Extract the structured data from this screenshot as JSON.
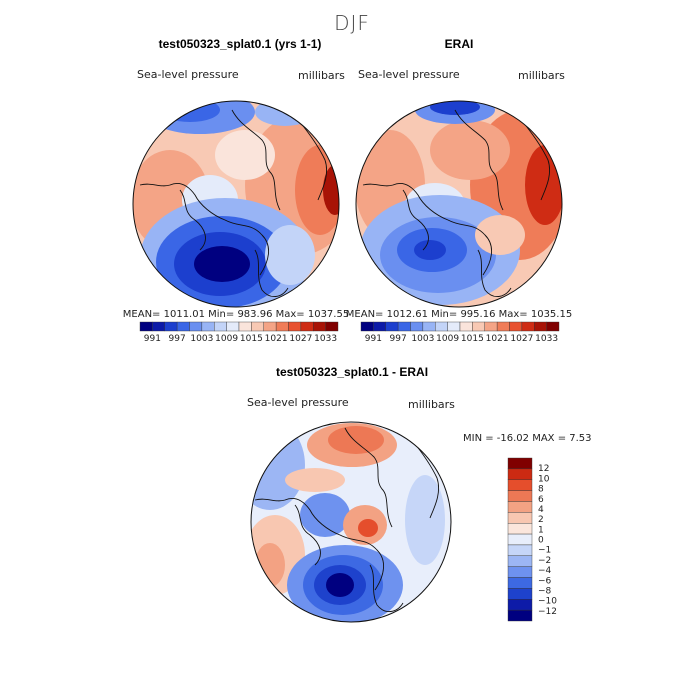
{
  "season": "DJF",
  "colors": {
    "neg": [
      "#000080",
      "#0c1aa8",
      "#1c3fce",
      "#3a66e6",
      "#6a8ff0",
      "#98b4f5",
      "#c3d4f8",
      "#e4ebfa"
    ],
    "pos": [
      "#fae4db",
      "#f8c9b4",
      "#f4a486",
      "#ef7c58",
      "#e85230",
      "#cf2c14",
      "#a81306",
      "#800000"
    ],
    "diff_scale": [
      "#000080",
      "#0d1ba8",
      "#1e42cc",
      "#3d69e3",
      "#6e92ef",
      "#9cb6f4",
      "#c6d6f8",
      "#e8eefb",
      "#fbe6dc",
      "#f8c7b1",
      "#f3a283",
      "#ed7855",
      "#e54e2c",
      "#cc2a12",
      "#800000"
    ]
  },
  "chart_data": [
    {
      "type": "heatmap",
      "projection": "polar-stereographic",
      "title": "test050323_splat0.1 (yrs 1-1)",
      "variable": "Sea-level pressure",
      "units": "millibars",
      "stats_text": "MEAN= 1011.01   Min= 983.96   Max= 1037.55",
      "stats": {
        "mean": 1011.01,
        "min": 983.96,
        "max": 1037.55
      },
      "colorbar_labels": [
        "991",
        "997",
        "1003",
        "1009",
        "1015",
        "1021",
        "1027",
        "1033"
      ],
      "levels": [
        988,
        991,
        994,
        997,
        1000,
        1003,
        1006,
        1009,
        1012,
        1015,
        1018,
        1021,
        1024,
        1027,
        1030,
        1033,
        1036
      ]
    },
    {
      "type": "heatmap",
      "projection": "polar-stereographic",
      "title": "ERAI",
      "variable": "Sea-level pressure",
      "units": "millibars",
      "stats_text": "MEAN= 1012.61   Min= 995.16   Max= 1035.15",
      "stats": {
        "mean": 1012.61,
        "min": 995.16,
        "max": 1035.15
      },
      "colorbar_labels": [
        "991",
        "997",
        "1003",
        "1009",
        "1015",
        "1021",
        "1027",
        "1033"
      ],
      "levels": [
        988,
        991,
        994,
        997,
        1000,
        1003,
        1006,
        1009,
        1012,
        1015,
        1018,
        1021,
        1024,
        1027,
        1030,
        1033,
        1036
      ]
    },
    {
      "type": "heatmap",
      "projection": "polar-stereographic",
      "title": "test050323_splat0.1 - ERAI",
      "variable": "Sea-level pressure",
      "units": "millibars",
      "stats_text": "MIN = -16.02  MAX =    7.53",
      "stats": {
        "min": -16.02,
        "max": 7.53
      },
      "colorbar_labels": [
        "12",
        "10",
        "8",
        "6",
        "4",
        "2",
        "1",
        "0",
        "−1",
        "−2",
        "−4",
        "−6",
        "−8",
        "−10",
        "−12"
      ],
      "levels": [
        -12,
        -10,
        -8,
        -6,
        -4,
        -2,
        -1,
        0,
        1,
        2,
        4,
        6,
        8,
        10,
        12
      ]
    }
  ]
}
